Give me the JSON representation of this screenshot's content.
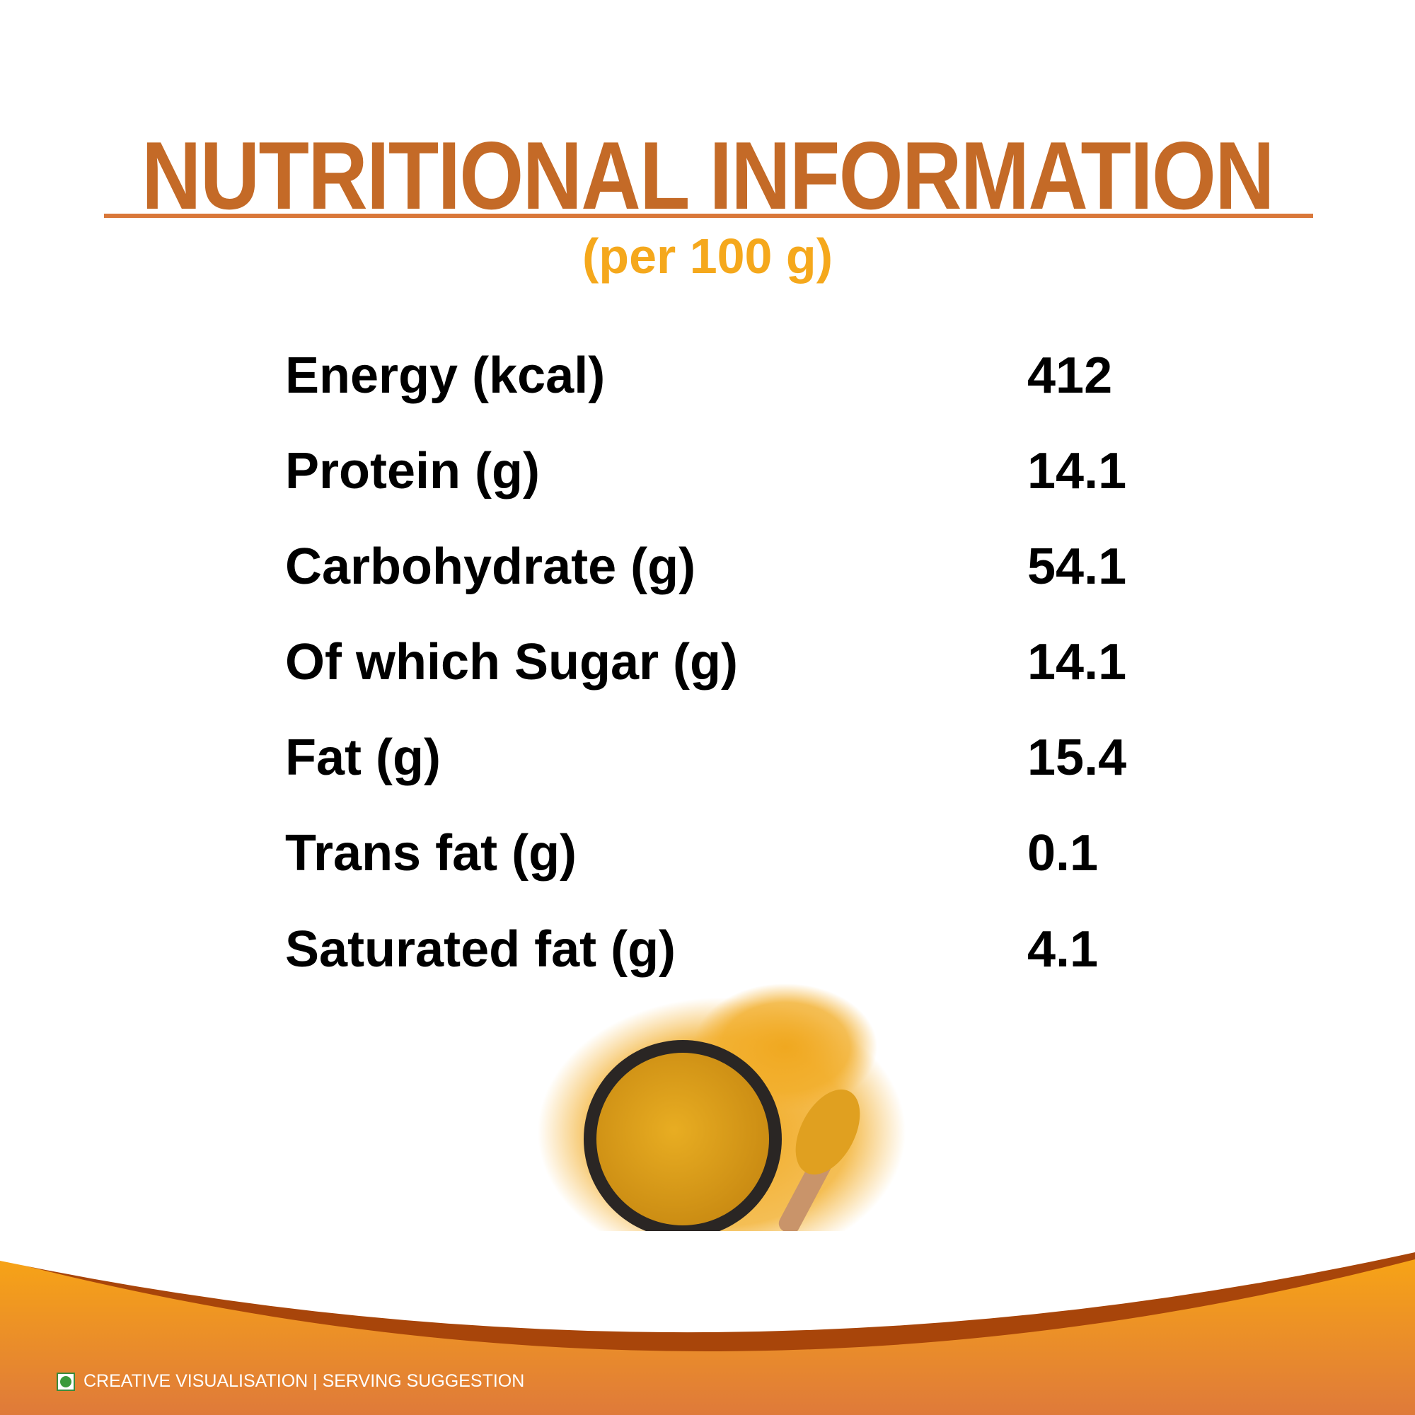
{
  "header": {
    "title": "NUTRITIONAL INFORMATION",
    "subtitle": "(per 100 g)"
  },
  "nutrition": [
    {
      "label": "Energy (kcal)",
      "value": "412"
    },
    {
      "label": "Protein (g)",
      "value": "14.1"
    },
    {
      "label": "Carbohydrate (g)",
      "value": "54.1"
    },
    {
      "label": "Of which Sugar (g)",
      "value": "14.1"
    },
    {
      "label": "Fat (g)",
      "value": "15.4"
    },
    {
      "label": "Trans fat (g)",
      "value": "0.1"
    },
    {
      "label": "Saturated fat (g)",
      "value": "4.1"
    }
  ],
  "footer": {
    "text": "CREATIVE VISUALISATION | SERVING SUGGESTION",
    "icon": "veg-mark-icon"
  },
  "colors": {
    "title": "#c46a27",
    "subtitle": "#f5a81c",
    "band_brown": "#a8450a",
    "band_orange": "#f5a81c",
    "veg_green": "#3b9a3b"
  }
}
